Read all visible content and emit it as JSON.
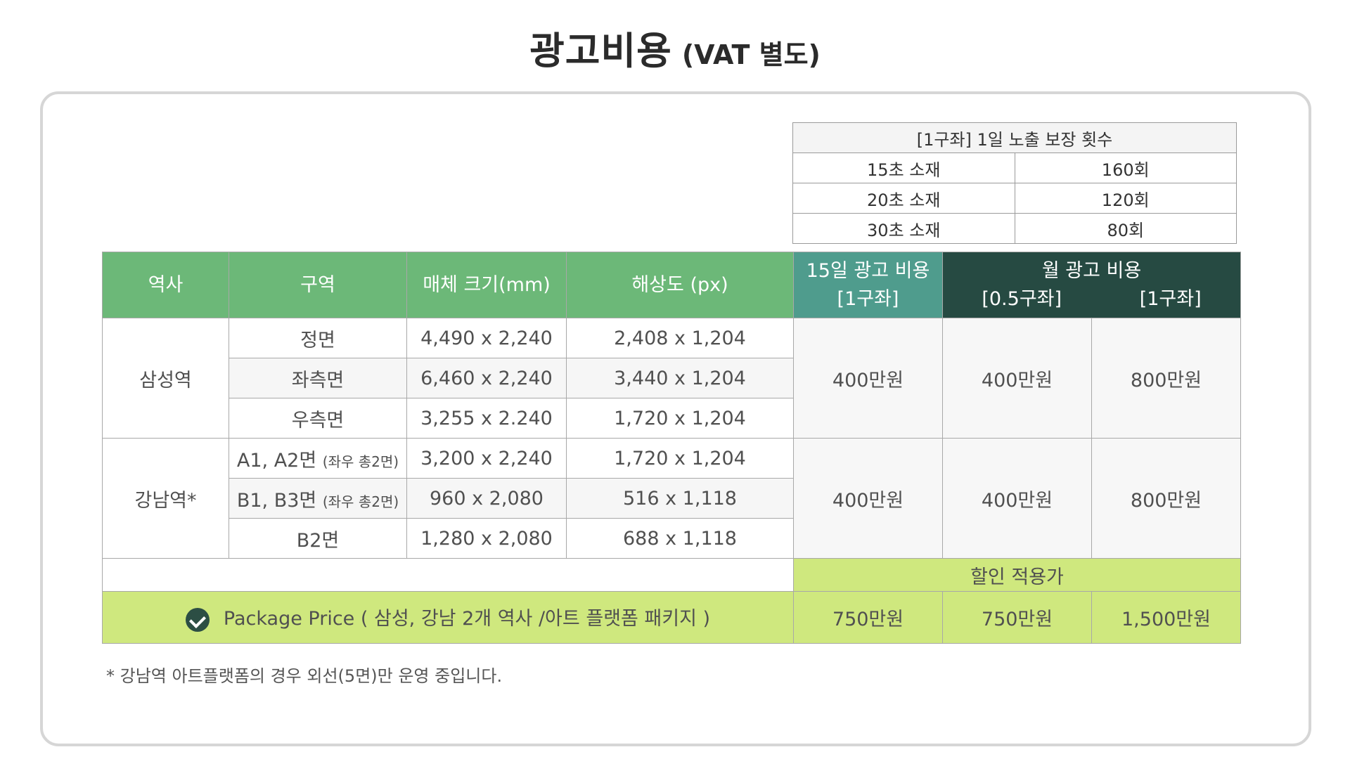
{
  "header": {
    "title": "광고비용",
    "subtitle": "(VAT 별도)"
  },
  "exposure": {
    "title": "[1구좌]  1일 노출 보장 횟수",
    "rows": [
      {
        "label": "15초 소재",
        "value": "160회"
      },
      {
        "label": "20초 소재",
        "value": "120회"
      },
      {
        "label": "30초 소재",
        "value": "80회"
      }
    ]
  },
  "table": {
    "headers": {
      "station": "역사",
      "zone": "구역",
      "size": "매체 크기(mm)",
      "resolution": "해상도 (px)",
      "fifteen_day_line1": "15일 광고 비용",
      "fifteen_day_line2": "[1구좌]",
      "monthly": "월 광고 비용",
      "monthly_half": "[0.5구좌]",
      "monthly_full": "[1구좌]"
    },
    "groups": [
      {
        "station": "삼성역",
        "rows": [
          {
            "zone": "정면",
            "zone_note": "",
            "size": "4,490 x 2,240",
            "resolution": "2,408 x 1,204"
          },
          {
            "zone": "좌측면",
            "zone_note": "",
            "size": "6,460 x 2,240",
            "resolution": "3,440 x 1,204"
          },
          {
            "zone": "우측면",
            "zone_note": "",
            "size": "3,255 x 2.240",
            "resolution": "1,720 x 1,204"
          }
        ],
        "price_15day": "400만원",
        "price_month_half": "400만원",
        "price_month_full": "800만원"
      },
      {
        "station": "강남역*",
        "rows": [
          {
            "zone": "A1, A2면",
            "zone_note": "(좌우 총2면)",
            "size": "3,200 x 2,240",
            "resolution": "1,720 x 1,204"
          },
          {
            "zone": "B1, B3면",
            "zone_note": "(좌우 총2면)",
            "size": "960 x 2,080",
            "resolution": "516 x 1,118"
          },
          {
            "zone": "B2면",
            "zone_note": "",
            "size": "1,280 x 2,080",
            "resolution": "688 x 1,118"
          }
        ],
        "price_15day": "400만원",
        "price_month_half": "400만원",
        "price_month_full": "800만원"
      }
    ],
    "discount_label": "할인 적용가",
    "package": {
      "label": "Package Price ( 삼성, 강남 2개 역사 /아트 플랫폼 패키지 )",
      "price_15day": "750만원",
      "price_month_half": "750만원",
      "price_month_full": "1,500만원"
    }
  },
  "footnote": "*  강남역 아트플랫폼의 경우 외선(5면)만 운영 중입니다.",
  "colors": {
    "header_green": "#6cb878",
    "header_teal": "#4f9c8d",
    "header_dark": "#264a42",
    "highlight_lime": "#cfe87e"
  }
}
